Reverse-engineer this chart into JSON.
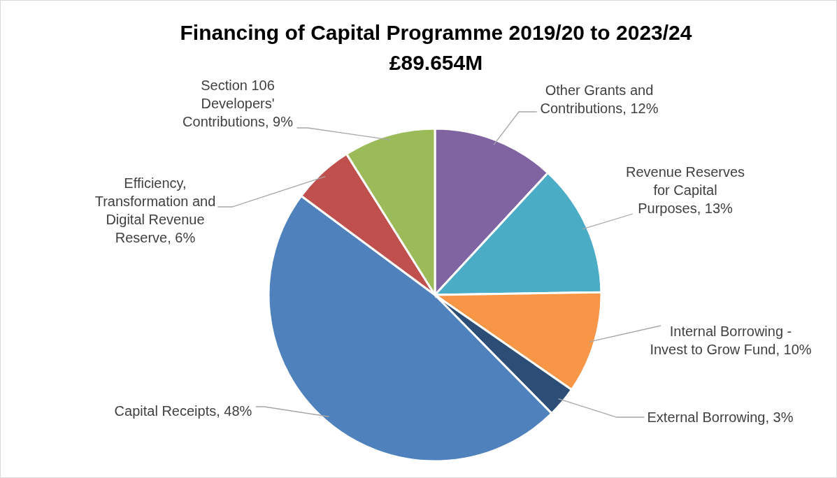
{
  "chart_data": {
    "type": "pie",
    "title": "Financing of Capital Programme 2019/20 to 2023/24",
    "subtitle": "£89.654M",
    "categories": [
      "Other Grants and Contributions",
      "Revenue Reserves for Capital Purposes",
      "Internal Borrowing - Invest to Grow Fund",
      "External Borrowing",
      "Capital Receipts",
      "Efficiency, Transformation and Digital Revenue Reserve",
      "Section 106 Developers' Contributions"
    ],
    "values": [
      12,
      13,
      10,
      3,
      48,
      6,
      9
    ],
    "value_labels": [
      "12%",
      "13%",
      "10%",
      "3%",
      "48%",
      "6%",
      "9%"
    ],
    "colors": [
      "#8064a2",
      "#4bacc6",
      "#f79646",
      "#2c4d75",
      "#4f81bd",
      "#c0504d",
      "#9bbb59"
    ]
  }
}
